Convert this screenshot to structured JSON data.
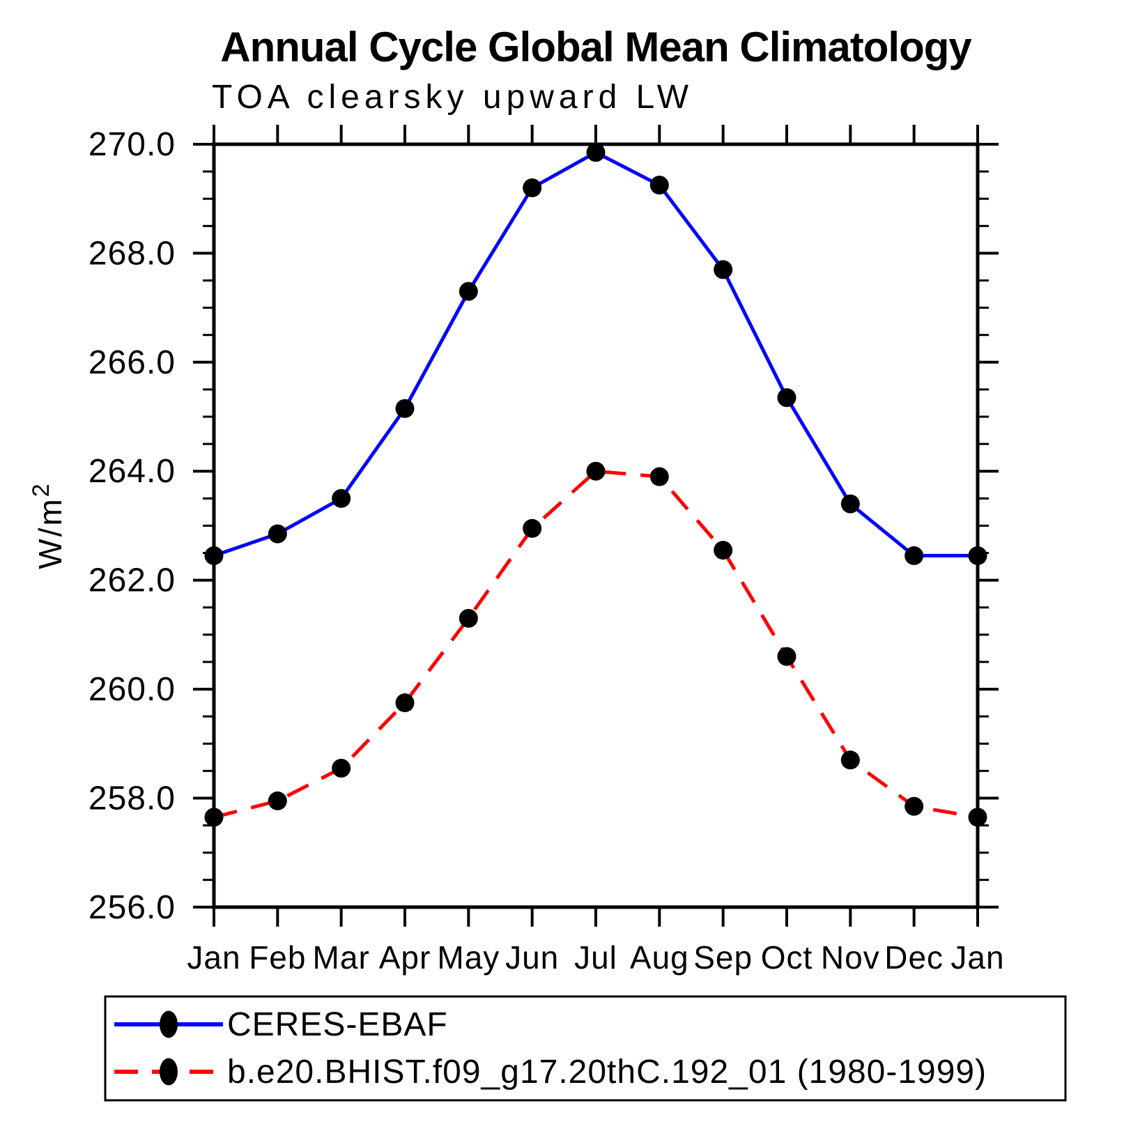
{
  "figure": {
    "title": "Annual Cycle Global Mean Climatology",
    "subtitle": "TOA clearsky upward LW",
    "ylabel_base": "W/m",
    "ylabel_sup": "2"
  },
  "colors": {
    "obs_line": "#0000ff",
    "model_line": "#ff0000",
    "marker": "#000000",
    "axis": "#000000",
    "background": "#ffffff"
  },
  "legend": {
    "entries": [
      {
        "label": "CERES-EBAF",
        "color": "#0000ff",
        "line_style": "solid",
        "marker": "dot"
      },
      {
        "label": "b.e20.BHIST.f09_g17.20thC.192_01 (1980-1999)",
        "color": "#ff0000",
        "line_style": "dashed",
        "marker": "dot"
      }
    ]
  },
  "chart_data": {
    "type": "line",
    "title": "Annual Cycle Global Mean Climatology",
    "subtitle": "TOA clearsky upward LW",
    "xlabel": "",
    "ylabel": "W/m²",
    "categories": [
      "Jan",
      "Feb",
      "Mar",
      "Apr",
      "May",
      "Jun",
      "Jul",
      "Aug",
      "Sep",
      "Oct",
      "Nov",
      "Dec",
      "Jan"
    ],
    "series": [
      {
        "name": "CERES-EBAF",
        "color": "#0000ff",
        "line_style": "solid",
        "marker": "circle",
        "marker_color": "#000000",
        "values": [
          262.45,
          262.85,
          263.5,
          265.15,
          267.3,
          269.2,
          269.85,
          269.25,
          267.7,
          265.35,
          263.4,
          262.45,
          262.45
        ]
      },
      {
        "name": "b.e20.BHIST.f09_g17.20thC.192_01 (1980-1999)",
        "color": "#ff0000",
        "line_style": "dashed",
        "marker": "circle",
        "marker_color": "#000000",
        "values": [
          257.65,
          257.95,
          258.55,
          259.75,
          261.3,
          262.95,
          264.0,
          263.9,
          262.55,
          260.6,
          258.7,
          257.85,
          257.65
        ]
      }
    ],
    "ylim": [
      256.0,
      270.0
    ],
    "ytick_step": 2.0,
    "yminor_step": 0.5,
    "ytick_labels": [
      "256.0",
      "258.0",
      "260.0",
      "262.0",
      "264.0",
      "266.0",
      "268.0",
      "270.0"
    ],
    "grid": false,
    "legend_position": "bottom-left-box"
  }
}
